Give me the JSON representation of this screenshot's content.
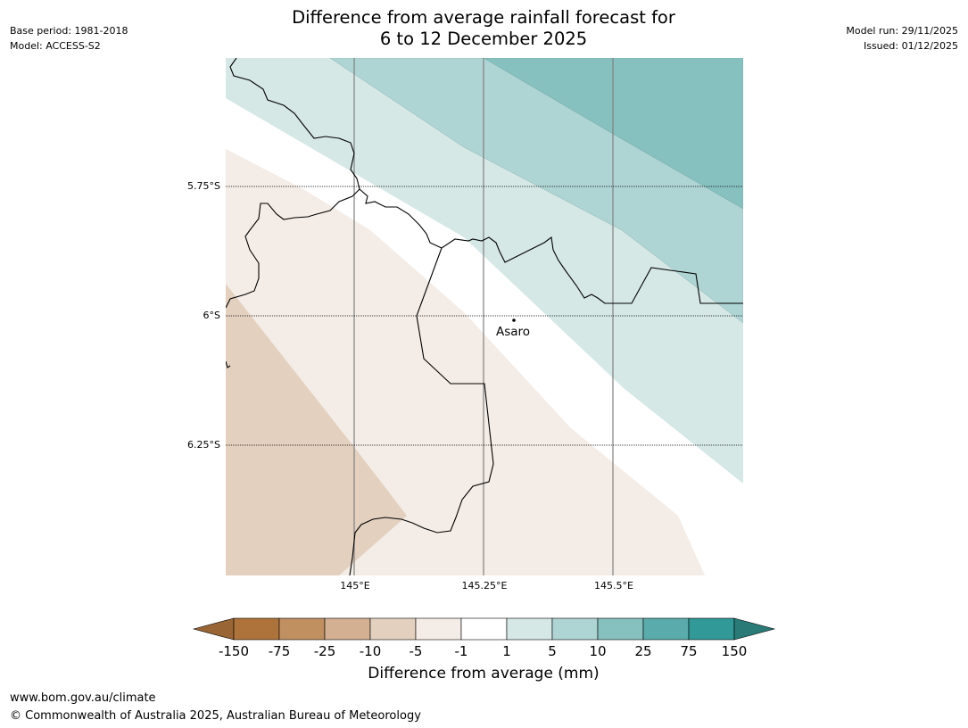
{
  "header": {
    "title_line1": "Difference from average rainfall forecast for",
    "title_line2": "6 to 12 December 2025",
    "base_period": "Base period: 1981-2018",
    "model": "Model: ACCESS-S2",
    "model_run": "Model run: 29/11/2025",
    "issued": "Issued: 01/12/2025"
  },
  "map": {
    "latitude_labels": [
      "5.75°S",
      "6°S",
      "6.25°S"
    ],
    "longitude_labels": [
      "145°E",
      "145.25°E",
      "145.5°E"
    ],
    "place": {
      "name": "Asaro"
    },
    "extent": {
      "lon_min": 144.76,
      "lon_max": 145.74,
      "lat_min": -6.5,
      "lat_max": -5.5
    }
  },
  "colorbar": {
    "title": "Difference from average (mm)",
    "ticks": [
      "-150",
      "-75",
      "-25",
      "-10",
      "-5",
      "-1",
      "1",
      "5",
      "10",
      "25",
      "75",
      "150"
    ],
    "colors": {
      "below_min": "#9a6535",
      "c1": "#ae733a",
      "c2": "#c09061",
      "c3": "#d4b092",
      "c4": "#e3d0bf",
      "c5": "#f4ece6",
      "c6": "#ffffff",
      "c7": "#d5e8e6",
      "c8": "#aed4d3",
      "c9": "#86c0bf",
      "c10": "#5aabab",
      "c11": "#319998",
      "above_max": "#2a7b78"
    }
  },
  "footer": {
    "url": "www.bom.gov.au/climate",
    "copyright": "© Commonwealth of Australia 2025, Australian Bureau of Meteorology"
  }
}
